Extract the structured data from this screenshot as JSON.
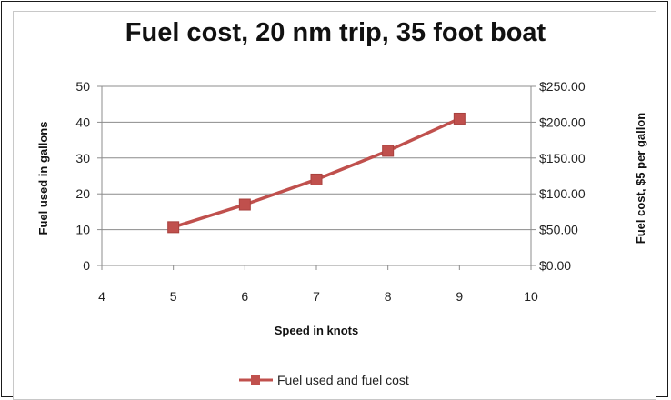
{
  "chart_data": {
    "type": "line",
    "title": "Fuel cost, 20 nm trip, 35 foot boat",
    "xlabel": "Speed in knots",
    "ylabel": "Fuel used in gallons",
    "y2label": "Fuel cost, $5 per gallon",
    "xlim": [
      4,
      10
    ],
    "ylim": [
      0,
      50
    ],
    "y2lim": [
      0,
      250
    ],
    "x_ticks": [
      "4",
      "5",
      "6",
      "7",
      "8",
      "9",
      "10"
    ],
    "y_ticks": [
      "0",
      "10",
      "20",
      "30",
      "40",
      "50"
    ],
    "y2_ticks": [
      "$0.00",
      "$50.00",
      "$100.00",
      "$150.00",
      "$200.00",
      "$250.00"
    ],
    "grid": true,
    "legend_position": "bottom",
    "series": [
      {
        "name": "Fuel used and fuel cost",
        "color": "#c0504d",
        "x": [
          5,
          6,
          7,
          8,
          9
        ],
        "values": [
          10.7,
          17,
          24,
          32,
          41
        ]
      }
    ]
  }
}
